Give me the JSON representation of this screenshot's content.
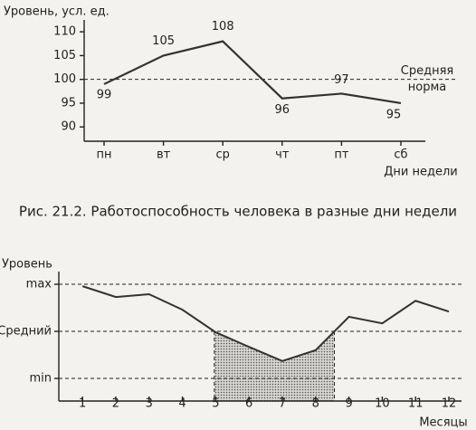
{
  "chart_data": [
    {
      "type": "line",
      "y_label": "Уровень, усл. ед.",
      "x_label": "Дни недели",
      "caption": "Рис. 21.2. Работоспособность человека в разные дни недели",
      "categories": [
        "пн",
        "вт",
        "ср",
        "чт",
        "пт",
        "сб"
      ],
      "values": [
        99,
        105,
        108,
        96,
        97,
        95
      ],
      "color": "#333333",
      "ylim": [
        87,
        112.5
      ],
      "yticks": [
        90,
        95,
        100,
        105,
        110
      ],
      "reference": {
        "value": 100,
        "label": [
          "Средняя",
          "норма"
        ]
      }
    },
    {
      "type": "line",
      "y_label": "Уровень",
      "x_label": "Месяцы",
      "x": [
        1,
        2,
        3,
        4,
        5,
        6,
        7,
        8,
        9,
        10,
        11,
        12
      ],
      "values": [
        1.96,
        1.73,
        1.79,
        1.46,
        0.98,
        0.67,
        0.37,
        0.6,
        1.31,
        1.17,
        1.65,
        1.42
      ],
      "color": "#333333",
      "xlim": [
        0.29,
        12.38
      ],
      "xticks": [
        1,
        2,
        3,
        4,
        5,
        6,
        7,
        8,
        9,
        10,
        11,
        12
      ],
      "ylim": [
        -0.48,
        2.27
      ],
      "yticks": [
        {
          "value": 0,
          "label": "min"
        },
        {
          "value": 1,
          "label": "Средний"
        },
        {
          "value": 2,
          "label": "max"
        }
      ],
      "grid": true,
      "shade_below": 1
    }
  ]
}
